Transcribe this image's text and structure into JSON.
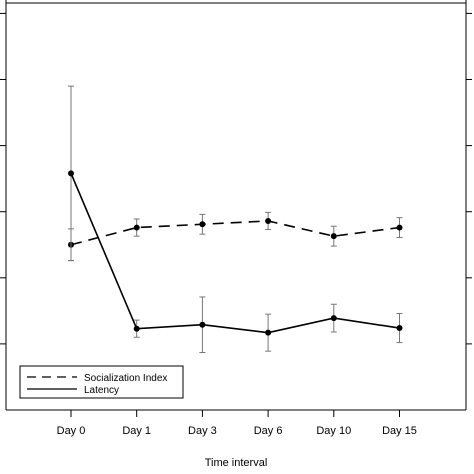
{
  "chart_data": {
    "type": "line",
    "xlabel": "Time interval",
    "ylabel": "",
    "categories": [
      "Day 0",
      "Day 1",
      "Day 3",
      "Day 6",
      "Day 10",
      "Day 15"
    ],
    "ylim": [
      0,
      6
    ],
    "series": [
      {
        "name": "Socialization Index",
        "style": "dashed",
        "values": [
          2.5,
          2.76,
          2.81,
          2.86,
          2.63,
          2.76
        ],
        "error": [
          0.24,
          0.13,
          0.15,
          0.13,
          0.15,
          0.15
        ]
      },
      {
        "name": "Latency",
        "style": "solid",
        "values": [
          3.58,
          1.23,
          1.29,
          1.17,
          1.39,
          1.24
        ],
        "error": [
          1.32,
          0.13,
          0.42,
          0.28,
          0.21,
          0.22
        ]
      }
    ],
    "legend_position": "bottom-left",
    "grid": false,
    "color": "#000000"
  }
}
